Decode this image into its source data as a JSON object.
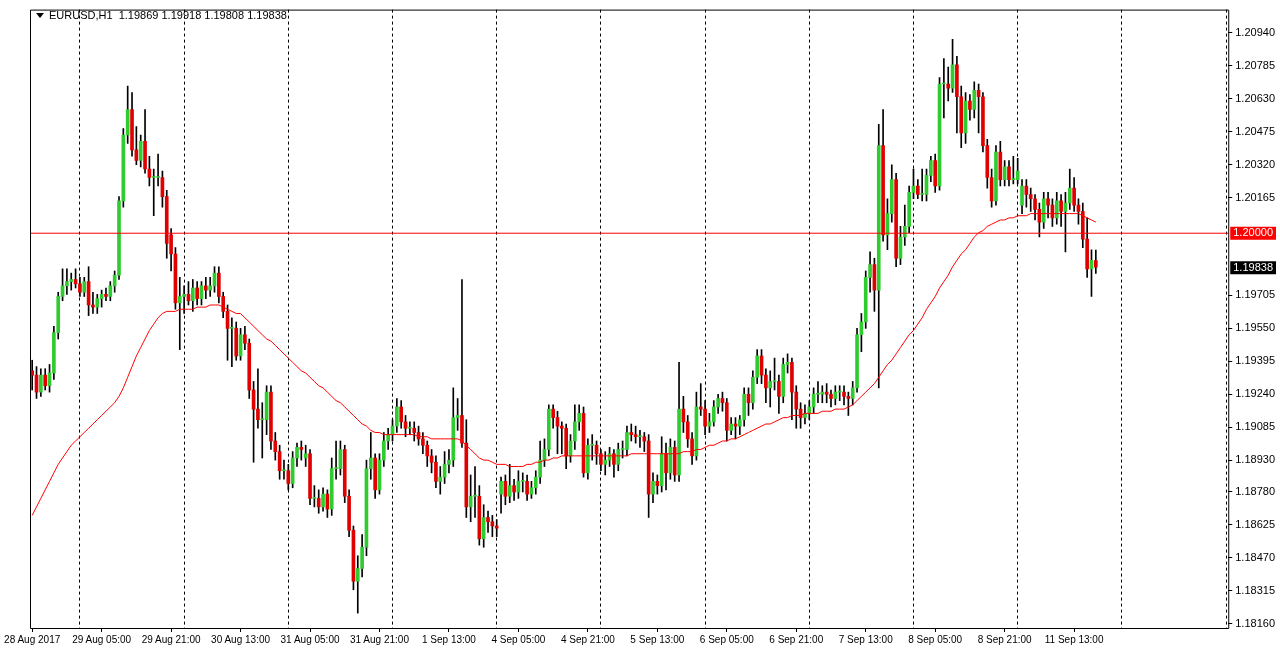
{
  "chart_data": {
    "type": "candlestick",
    "title": "EURUSD,H1  1.19869 1.19918 1.19808 1.19838",
    "categories": [
      "28 Aug 2017",
      null,
      null,
      null,
      null,
      null,
      null,
      null,
      null,
      null,
      null,
      null,
      null,
      null,
      null,
      null,
      "29 Aug 05:00",
      null,
      null,
      null,
      null,
      null,
      null,
      null,
      null,
      null,
      null,
      null,
      null,
      null,
      null,
      null,
      "29 Aug 21:00",
      null,
      null,
      null,
      null,
      null,
      null,
      null,
      null,
      null,
      null,
      null,
      null,
      null,
      null,
      null,
      "30 Aug 13:00",
      null,
      null,
      null,
      null,
      null,
      null,
      null,
      null,
      null,
      null,
      null,
      null,
      null,
      null,
      null,
      "31 Aug 05:00",
      null,
      null,
      null,
      null,
      null,
      null,
      null,
      null,
      null,
      null,
      null,
      null,
      null,
      null,
      null,
      "31 Aug 21:00",
      null,
      null,
      null,
      null,
      null,
      null,
      null,
      null,
      null,
      null,
      null,
      null,
      null,
      null,
      null,
      "1 Sep 13:00",
      null,
      null,
      null,
      null,
      null,
      null,
      null,
      null,
      null,
      null,
      null,
      null,
      null,
      null,
      null,
      "4 Sep 05:00",
      null,
      null,
      null,
      null,
      null,
      null,
      null,
      null,
      null,
      null,
      null,
      null,
      null,
      null,
      null,
      "4 Sep 21:00",
      null,
      null,
      null,
      null,
      null,
      null,
      null,
      null,
      null,
      null,
      null,
      null,
      null,
      null,
      null,
      "5 Sep 13:00",
      null,
      null,
      null,
      null,
      null,
      null,
      null,
      null,
      null,
      null,
      null,
      null,
      null,
      null,
      null,
      "6 Sep 05:00",
      null,
      null,
      null,
      null,
      null,
      null,
      null,
      null,
      null,
      null,
      null,
      null,
      null,
      null,
      null,
      "6 Sep 21:00",
      null,
      null,
      null,
      null,
      null,
      null,
      null,
      null,
      null,
      null,
      null,
      null,
      null,
      null,
      null,
      "7 Sep 13:00",
      null,
      null,
      null,
      null,
      null,
      null,
      null,
      null,
      null,
      null,
      null,
      null,
      null,
      null,
      null,
      "8 Sep 05:00",
      null,
      null,
      null,
      null,
      null,
      null,
      null,
      null,
      null,
      null,
      null,
      null,
      null,
      null,
      null,
      "8 Sep 21:00",
      null,
      null,
      null,
      null,
      null,
      null,
      null,
      null,
      null,
      null,
      null,
      null,
      null,
      null,
      null,
      "11 Sep 13:00",
      null,
      null,
      null,
      null,
      null
    ],
    "ohlc": [
      [
        1.1935,
        1.194,
        1.1926,
        1.1933
      ],
      [
        1.1933,
        1.1937,
        1.1922,
        1.1925
      ],
      [
        1.1925,
        1.1936,
        1.1923,
        1.1933
      ],
      [
        1.1933,
        1.1936,
        1.1926,
        1.1928
      ],
      [
        1.1928,
        1.1938,
        1.1925,
        1.1934
      ],
      [
        1.1934,
        1.1956,
        1.1931,
        1.1953
      ],
      [
        1.1953,
        1.1972,
        1.195,
        1.197
      ],
      [
        1.197,
        1.1983,
        1.1968,
        1.1975
      ],
      [
        1.1975,
        1.1983,
        1.1971,
        1.1977
      ],
      [
        1.1977,
        1.1981,
        1.1973,
        1.1978
      ],
      [
        1.1978,
        1.1983,
        1.1974,
        1.1976
      ],
      [
        1.1976,
        1.1979,
        1.197,
        1.1972
      ],
      [
        1.1972,
        1.1979,
        1.197,
        1.1977
      ],
      [
        1.1977,
        1.1984,
        1.1961,
        1.1966
      ],
      [
        1.1966,
        1.1972,
        1.1962,
        1.1965
      ],
      [
        1.1965,
        1.1971,
        1.1962,
        1.1969
      ],
      [
        1.1969,
        1.1973,
        1.1965,
        1.1971
      ],
      [
        1.1971,
        1.1974,
        1.1968,
        1.197
      ],
      [
        1.197,
        1.1977,
        1.1968,
        1.1975
      ],
      [
        1.1975,
        1.1982,
        1.1972,
        1.198
      ],
      [
        1.198,
        1.2017,
        1.1978,
        1.2015
      ],
      [
        1.2015,
        1.2049,
        1.2012,
        1.2046
      ],
      [
        1.2046,
        1.2069,
        1.2042,
        1.2058
      ],
      [
        1.2058,
        1.2066,
        1.2036,
        1.2039
      ],
      [
        1.2039,
        1.205,
        1.2032,
        1.2034
      ],
      [
        1.2034,
        1.2046,
        1.2031,
        1.2043
      ],
      [
        1.2043,
        1.2058,
        1.2028,
        1.203
      ],
      [
        1.203,
        1.2036,
        1.2022,
        1.2026
      ],
      [
        1.2026,
        1.203,
        1.2008,
        1.2026
      ],
      [
        1.2026,
        1.2037,
        1.2022,
        1.2026
      ],
      [
        1.2026,
        1.2029,
        1.2012,
        1.2017
      ],
      [
        1.2017,
        1.202,
        1.1988,
        1.1995
      ],
      [
        1.1999,
        1.2002,
        1.1982,
        1.199
      ],
      [
        1.199,
        1.1993,
        1.1964,
        1.1967
      ],
      [
        1.1967,
        1.1979,
        1.1945,
        1.197
      ],
      [
        1.197,
        1.1975,
        1.1962,
        1.1971
      ],
      [
        1.1971,
        1.1977,
        1.1966,
        1.1968
      ],
      [
        1.1968,
        1.1978,
        1.1963,
        1.1974
      ],
      [
        1.1974,
        1.1977,
        1.1966,
        1.1969
      ],
      [
        1.1969,
        1.1977,
        1.1966,
        1.1975
      ],
      [
        1.1975,
        1.1979,
        1.1969,
        1.1973
      ],
      [
        1.1973,
        1.1979,
        1.197,
        1.1975
      ],
      [
        1.1975,
        1.1984,
        1.1972,
        1.1981
      ],
      [
        1.1981,
        1.1984,
        1.1967,
        1.197
      ],
      [
        1.197,
        1.1972,
        1.196,
        1.1963
      ],
      [
        1.1963,
        1.1966,
        1.194,
        1.1955
      ],
      [
        1.1955,
        1.196,
        1.1937,
        1.1955
      ],
      [
        1.1955,
        1.1958,
        1.194,
        1.1942
      ],
      [
        1.1942,
        1.1955,
        1.194,
        1.1952
      ],
      [
        1.1952,
        1.1956,
        1.1945,
        1.1948
      ],
      [
        1.1948,
        1.195,
        1.1922,
        1.1926
      ],
      [
        1.1926,
        1.193,
        1.1892,
        1.1917
      ],
      [
        1.1917,
        1.1936,
        1.1908,
        1.1912
      ],
      [
        1.1912,
        1.192,
        1.1894,
        1.1912
      ],
      [
        1.1912,
        1.1928,
        1.1905,
        1.1925
      ],
      [
        1.1925,
        1.1928,
        1.1898,
        1.1902
      ],
      [
        1.1902,
        1.1906,
        1.1893,
        1.1897
      ],
      [
        1.1897,
        1.19,
        1.1884,
        1.1888
      ],
      [
        1.1888,
        1.1893,
        1.1884,
        1.1888
      ],
      [
        1.1888,
        1.1891,
        1.1879,
        1.1882
      ],
      [
        1.1882,
        1.1897,
        1.188,
        1.1894
      ],
      [
        1.1894,
        1.1901,
        1.189,
        1.1899
      ],
      [
        1.1899,
        1.1902,
        1.1893,
        1.1898
      ],
      [
        1.1894,
        1.19,
        1.189,
        1.1896
      ],
      [
        1.1896,
        1.1898,
        1.1872,
        1.1875
      ],
      [
        1.1875,
        1.1881,
        1.1871,
        1.1875
      ],
      [
        1.1875,
        1.1879,
        1.1868,
        1.1871
      ],
      [
        1.1871,
        1.188,
        1.1869,
        1.1877
      ],
      [
        1.1877,
        1.1879,
        1.1866,
        1.187
      ],
      [
        1.187,
        1.1894,
        1.1867,
        1.1889
      ],
      [
        1.1889,
        1.1902,
        1.1884,
        1.1889
      ],
      [
        1.1889,
        1.1902,
        1.1886,
        1.1898
      ],
      [
        1.1898,
        1.19,
        1.1873,
        1.1876
      ],
      [
        1.1876,
        1.1879,
        1.1857,
        1.186
      ],
      [
        1.186,
        1.1862,
        1.1832,
        1.1836
      ],
      [
        1.1836,
        1.1848,
        1.1821,
        1.1842
      ],
      [
        1.1842,
        1.1858,
        1.1838,
        1.1852
      ],
      [
        1.1852,
        1.1893,
        1.1848,
        1.1889
      ],
      [
        1.1889,
        1.1906,
        1.1884,
        1.1894
      ],
      [
        1.1894,
        1.1896,
        1.1875,
        1.1879
      ],
      [
        1.1879,
        1.1896,
        1.1877,
        1.1893
      ],
      [
        1.1893,
        1.1906,
        1.189,
        1.1902
      ],
      [
        1.1902,
        1.1908,
        1.1898,
        1.1905
      ],
      [
        1.1905,
        1.1912,
        1.1902,
        1.1909
      ],
      [
        1.1909,
        1.1922,
        1.1906,
        1.1918
      ],
      [
        1.1918,
        1.1921,
        1.1908,
        1.1911
      ],
      [
        1.1911,
        1.1914,
        1.1904,
        1.1908
      ],
      [
        1.1908,
        1.1911,
        1.1905,
        1.1908
      ],
      [
        1.1908,
        1.1911,
        1.1902,
        1.1906
      ],
      [
        1.1906,
        1.1909,
        1.19,
        1.1903
      ],
      [
        1.1903,
        1.1906,
        1.1896,
        1.19
      ],
      [
        1.19,
        1.1902,
        1.189,
        1.1895
      ],
      [
        1.1895,
        1.1898,
        1.1887,
        1.1892
      ],
      [
        1.1892,
        1.1895,
        1.188,
        1.1883
      ],
      [
        1.1883,
        1.189,
        1.1877,
        1.1885
      ],
      [
        1.1885,
        1.1897,
        1.1882,
        1.1891
      ],
      [
        1.1891,
        1.1898,
        1.1887,
        1.1893
      ],
      [
        1.1893,
        1.1927,
        1.189,
        1.1913
      ],
      [
        1.1913,
        1.1922,
        1.1907,
        1.1914
      ],
      [
        1.1914,
        1.1978,
        1.1899,
        1.1901
      ],
      [
        1.1901,
        1.1912,
        1.1866,
        1.1871
      ],
      [
        1.1871,
        1.1886,
        1.1864,
        1.1876
      ],
      [
        1.1876,
        1.189,
        1.1866,
        1.1876
      ],
      [
        1.1876,
        1.1881,
        1.1853,
        1.1856
      ],
      [
        1.1856,
        1.1872,
        1.1852,
        1.1866
      ],
      [
        1.1866,
        1.1869,
        1.1859,
        1.1864
      ],
      [
        1.1864,
        1.1867,
        1.1857,
        1.1862
      ],
      [
        1.1862,
        1.1865,
        1.1857,
        1.1861
      ],
      [
        1.1877,
        1.1885,
        1.1868,
        1.1883
      ],
      [
        1.1883,
        1.1886,
        1.1872,
        1.1876
      ],
      [
        1.1876,
        1.1891,
        1.1873,
        1.1881
      ],
      [
        1.1881,
        1.1884,
        1.1874,
        1.1878
      ],
      [
        1.1878,
        1.1888,
        1.1875,
        1.1883
      ],
      [
        1.1883,
        1.1887,
        1.1878,
        1.1883
      ],
      [
        1.1883,
        1.1886,
        1.1874,
        1.1877
      ],
      [
        1.1877,
        1.1883,
        1.1875,
        1.188
      ],
      [
        1.188,
        1.1888,
        1.1877,
        1.1885
      ],
      [
        1.1885,
        1.1902,
        1.1882,
        1.1893
      ],
      [
        1.1893,
        1.1903,
        1.189,
        1.1898
      ],
      [
        1.1898,
        1.1919,
        1.1895,
        1.1917
      ],
      [
        1.1917,
        1.1919,
        1.1908,
        1.1913
      ],
      [
        1.1913,
        1.1916,
        1.1896,
        1.1909
      ],
      [
        1.1909,
        1.1911,
        1.1896,
        1.1908
      ],
      [
        1.1908,
        1.191,
        1.1889,
        1.1895
      ],
      [
        1.1895,
        1.1905,
        1.1892,
        1.1902
      ],
      [
        1.1902,
        1.1919,
        1.1898,
        1.1911
      ],
      [
        1.1911,
        1.1919,
        1.1907,
        1.1915
      ],
      [
        1.1915,
        1.1918,
        1.1885,
        1.1887
      ],
      [
        1.1887,
        1.1903,
        1.1884,
        1.19
      ],
      [
        1.19,
        1.1905,
        1.1893,
        1.19
      ],
      [
        1.19,
        1.1902,
        1.1891,
        1.1896
      ],
      [
        1.1896,
        1.1898,
        1.1888,
        1.1891
      ],
      [
        1.1891,
        1.1897,
        1.1886,
        1.1893
      ],
      [
        1.1893,
        1.1899,
        1.189,
        1.1896
      ],
      [
        1.1896,
        1.1898,
        1.1885,
        1.1891
      ],
      [
        1.1891,
        1.1901,
        1.1888,
        1.1898
      ],
      [
        1.1898,
        1.1902,
        1.1894,
        1.1898
      ],
      [
        1.1898,
        1.1909,
        1.1895,
        1.1906
      ],
      [
        1.1906,
        1.191,
        1.1902,
        1.1905
      ],
      [
        1.1905,
        1.1909,
        1.1901,
        1.1904
      ],
      [
        1.1904,
        1.1907,
        1.1899,
        1.1904
      ],
      [
        1.1904,
        1.1906,
        1.1897,
        1.1902
      ],
      [
        1.1902,
        1.1905,
        1.1866,
        1.1877
      ],
      [
        1.1877,
        1.1887,
        1.1873,
        1.1883
      ],
      [
        1.1883,
        1.1886,
        1.1877,
        1.1881
      ],
      [
        1.1881,
        1.1904,
        1.1878,
        1.1896
      ],
      [
        1.1896,
        1.1901,
        1.1879,
        1.1887
      ],
      [
        1.1887,
        1.1903,
        1.1884,
        1.1899
      ],
      [
        1.1899,
        1.1902,
        1.1883,
        1.1886
      ],
      [
        1.1886,
        1.1939,
        1.1883,
        1.1917
      ],
      [
        1.1917,
        1.1923,
        1.1906,
        1.1911
      ],
      [
        1.1911,
        1.1914,
        1.1899,
        1.1903
      ],
      [
        1.1903,
        1.1906,
        1.1891,
        1.1895
      ],
      [
        1.1895,
        1.1925,
        1.1893,
        1.1918
      ],
      [
        1.1918,
        1.1929,
        1.1914,
        1.1917
      ],
      [
        1.1917,
        1.1921,
        1.1905,
        1.1909
      ],
      [
        1.1909,
        1.1915,
        1.1906,
        1.1911
      ],
      [
        1.1911,
        1.1921,
        1.1909,
        1.1918
      ],
      [
        1.1918,
        1.1924,
        1.1915,
        1.1922
      ],
      [
        1.1922,
        1.1925,
        1.1916,
        1.192
      ],
      [
        1.192,
        1.1922,
        1.1902,
        1.1907
      ],
      [
        1.1907,
        1.1913,
        1.1905,
        1.191
      ],
      [
        1.191,
        1.1913,
        1.1903,
        1.1909
      ],
      [
        1.1909,
        1.1914,
        1.1905,
        1.1912
      ],
      [
        1.1912,
        1.1927,
        1.1909,
        1.1924
      ],
      [
        1.1924,
        1.1927,
        1.1914,
        1.192
      ],
      [
        1.192,
        1.1935,
        1.1917,
        1.1932
      ],
      [
        1.1932,
        1.1945,
        1.1929,
        1.1942
      ],
      [
        1.1942,
        1.1945,
        1.1929,
        1.1933
      ],
      [
        1.1933,
        1.1936,
        1.192,
        1.1927
      ],
      [
        1.1927,
        1.1935,
        1.1918,
        1.193
      ],
      [
        1.193,
        1.1941,
        1.1926,
        1.193
      ],
      [
        1.193,
        1.1933,
        1.1915,
        1.1923
      ],
      [
        1.1923,
        1.1941,
        1.192,
        1.1938
      ],
      [
        1.1938,
        1.1943,
        1.1934,
        1.1939
      ],
      [
        1.1939,
        1.1941,
        1.1912,
        1.1925
      ],
      [
        1.1925,
        1.1928,
        1.1908,
        1.1917
      ],
      [
        1.1917,
        1.192,
        1.1908,
        1.1913
      ],
      [
        1.1913,
        1.1919,
        1.191,
        1.1915
      ],
      [
        1.1915,
        1.1921,
        1.1912,
        1.1918
      ],
      [
        1.1918,
        1.1927,
        1.1915,
        1.1924
      ],
      [
        1.1924,
        1.193,
        1.192,
        1.1924
      ],
      [
        1.1924,
        1.1928,
        1.192,
        1.1925
      ],
      [
        1.1925,
        1.1929,
        1.192,
        1.1924
      ],
      [
        1.1924,
        1.1926,
        1.1918,
        1.1922
      ],
      [
        1.1922,
        1.1928,
        1.1919,
        1.1925
      ],
      [
        1.1925,
        1.1928,
        1.1921,
        1.1925
      ],
      [
        1.1925,
        1.1928,
        1.1919,
        1.1923
      ],
      [
        1.1923,
        1.1925,
        1.1914,
        1.1922
      ],
      [
        1.1922,
        1.193,
        1.1919,
        1.1927
      ],
      [
        1.1927,
        1.1955,
        1.1925,
        1.1952
      ],
      [
        1.1952,
        1.1962,
        1.1944,
        1.1958
      ],
      [
        1.1958,
        1.1982,
        1.1955,
        1.1979
      ],
      [
        1.1979,
        1.1991,
        1.1972,
        1.1985
      ],
      [
        1.1985,
        1.1988,
        1.1963,
        1.1973
      ],
      [
        1.1973,
        1.2051,
        1.1927,
        1.2041
      ],
      [
        1.2041,
        1.2058,
        1.1996,
        1.1999
      ],
      [
        1.1999,
        1.2016,
        1.1992,
        1.2009
      ],
      [
        1.2009,
        1.2032,
        1.2005,
        1.2025
      ],
      [
        1.2025,
        1.2028,
        1.1984,
        1.1988
      ],
      [
        1.1988,
        1.2003,
        1.1985,
        1.1998
      ],
      [
        1.1998,
        1.2013,
        1.1994,
        1.2003
      ],
      [
        1.2003,
        1.2022,
        1.2,
        1.2019
      ],
      [
        1.2019,
        1.203,
        1.2016,
        1.2022
      ],
      [
        1.2022,
        1.2025,
        1.2016,
        1.2018
      ],
      [
        1.2018,
        1.203,
        1.2015,
        1.2018
      ],
      [
        1.2018,
        1.203,
        1.2015,
        1.2027
      ],
      [
        1.2027,
        1.2036,
        1.2024,
        1.2034
      ],
      [
        1.2034,
        1.2037,
        1.2019,
        1.2022
      ],
      [
        1.2022,
        1.2073,
        1.202,
        1.207
      ],
      [
        1.207,
        1.2082,
        1.2054,
        1.207
      ],
      [
        1.207,
        1.2078,
        1.2062,
        1.2068
      ],
      [
        1.2068,
        1.2091,
        1.2066,
        1.2079
      ],
      [
        1.2079,
        1.2083,
        1.2047,
        1.2064
      ],
      [
        1.2064,
        1.2069,
        1.204,
        1.2047
      ],
      [
        1.2047,
        1.2066,
        1.2042,
        1.2062
      ],
      [
        1.2062,
        1.2065,
        1.2053,
        1.2058
      ],
      [
        1.2058,
        1.2071,
        1.2054,
        1.2067
      ],
      [
        1.2067,
        1.207,
        1.2047,
        1.2064
      ],
      [
        1.2064,
        1.2066,
        1.2038,
        1.2041
      ],
      [
        1.2041,
        1.2044,
        1.2021,
        1.2026
      ],
      [
        1.2026,
        1.203,
        1.2012,
        1.2015
      ],
      [
        1.2015,
        1.2041,
        1.2013,
        1.2038
      ],
      [
        1.2038,
        1.2043,
        1.2022,
        1.2025
      ],
      [
        1.2025,
        1.2034,
        1.2022,
        1.2031
      ],
      [
        1.2031,
        1.2034,
        1.2022,
        1.2025
      ],
      [
        1.2025,
        1.2036,
        1.2023,
        1.2025
      ],
      [
        1.2025,
        1.2035,
        1.2023,
        1.2029
      ],
      [
        1.2013,
        1.2025,
        1.2009,
        1.2022
      ],
      [
        1.2022,
        1.2025,
        1.2012,
        1.2018
      ],
      [
        1.2018,
        1.2021,
        1.201,
        1.2016
      ],
      [
        1.2016,
        1.2018,
        1.2006,
        1.2011
      ],
      [
        1.2011,
        1.2014,
        1.1998,
        1.2005
      ],
      [
        1.2005,
        1.2019,
        1.2002,
        1.2016
      ],
      [
        1.2016,
        1.2019,
        1.2007,
        1.2013
      ],
      [
        1.2013,
        1.2016,
        1.2003,
        1.2007
      ],
      [
        1.2007,
        1.2019,
        1.2004,
        1.2015
      ],
      [
        1.2015,
        1.2018,
        1.2003,
        1.201
      ],
      [
        1.201,
        1.2019,
        1.1991,
        1.2014
      ],
      [
        1.2014,
        1.203,
        1.2011,
        1.2021
      ],
      [
        1.2021,
        1.2026,
        1.201,
        1.2013
      ],
      [
        1.2013,
        1.2016,
        1.2004,
        1.201
      ],
      [
        1.201,
        1.2014,
        1.1993,
        1.1997
      ],
      [
        1.1997,
        1.2007,
        1.1979,
        1.1983
      ],
      [
        1.1983,
        1.1992,
        1.197,
        1.1987
      ],
      [
        1.19869,
        1.19918,
        1.19808,
        1.19838
      ]
    ],
    "series": [
      {
        "type": "line",
        "color": "#ff0000",
        "values": [
          1.1867,
          1.1871,
          1.1875,
          1.1879,
          1.1883,
          1.1887,
          1.1891,
          1.1894,
          1.1897,
          1.19,
          1.1902,
          1.1904,
          1.1906,
          1.1908,
          1.191,
          1.1912,
          1.1914,
          1.1916,
          1.1918,
          1.192,
          1.1923,
          1.1927,
          1.1932,
          1.1937,
          1.1942,
          1.1946,
          1.195,
          1.1954,
          1.1957,
          1.196,
          1.1962,
          1.1963,
          1.1963,
          1.1963,
          1.1964,
          1.1964,
          1.1964,
          1.1964,
          1.1965,
          1.1965,
          1.1965,
          1.1966,
          1.1966,
          1.1966,
          1.1965,
          1.1964,
          1.1963,
          1.1962,
          1.1962,
          1.196,
          1.1958,
          1.1956,
          1.1954,
          1.1952,
          1.195,
          1.1949,
          1.1947,
          1.1945,
          1.1943,
          1.1941,
          1.1939,
          1.1937,
          1.1935,
          1.1934,
          1.1932,
          1.193,
          1.1928,
          1.1927,
          1.1925,
          1.1923,
          1.1921,
          1.192,
          1.1918,
          1.1916,
          1.1914,
          1.1912,
          1.191,
          1.1909,
          1.1907,
          1.1906,
          1.1906,
          1.1905,
          1.1905,
          1.1905,
          1.1905,
          1.1905,
          1.1905,
          1.1905,
          1.1905,
          1.1904,
          1.1904,
          1.1904,
          1.1903,
          1.1903,
          1.1903,
          1.1903,
          1.1903,
          1.1903,
          1.1903,
          1.1902,
          1.19,
          1.1898,
          1.1896,
          1.1894,
          1.1893,
          1.1893,
          1.1892,
          1.1891,
          1.1891,
          1.1891,
          1.189,
          1.189,
          1.189,
          1.189,
          1.1891,
          1.1891,
          1.1892,
          1.1892,
          1.1893,
          1.1893,
          1.1894,
          1.1894,
          1.1895,
          1.1895,
          1.1895,
          1.1895,
          1.1895,
          1.1895,
          1.1895,
          1.1895,
          1.1895,
          1.1895,
          1.1895,
          1.1895,
          1.1895,
          1.1895,
          1.1895,
          1.1895,
          1.1896,
          1.1896,
          1.1896,
          1.1896,
          1.1896,
          1.1896,
          1.1896,
          1.1896,
          1.1896,
          1.1896,
          1.1896,
          1.1896,
          1.1897,
          1.1897,
          1.1897,
          1.1898,
          1.1898,
          1.1899,
          1.19,
          1.19,
          1.1901,
          1.1902,
          1.1902,
          1.1903,
          1.1903,
          1.1904,
          1.1905,
          1.1906,
          1.1907,
          1.1908,
          1.1909,
          1.191,
          1.191,
          1.1911,
          1.1912,
          1.1913,
          1.1913,
          1.1914,
          1.1914,
          1.1914,
          1.1915,
          1.1915,
          1.1915,
          1.1915,
          1.1916,
          1.1916,
          1.1916,
          1.1917,
          1.1917,
          1.1917,
          1.1918,
          1.1919,
          1.1921,
          1.1923,
          1.1925,
          1.1927,
          1.1929,
          1.1932,
          1.1935,
          1.1938,
          1.194,
          1.1943,
          1.1946,
          1.1949,
          1.1952,
          1.1954,
          1.1957,
          1.196,
          1.1964,
          1.1967,
          1.197,
          1.1974,
          1.1977,
          1.198,
          1.1984,
          1.1987,
          1.199,
          1.1992,
          1.1995,
          1.1998,
          1.2,
          1.2001,
          1.2003,
          1.2004,
          1.2005,
          1.2006,
          1.2006,
          1.2007,
          1.2007,
          1.2008,
          1.2008,
          1.2008,
          1.2009,
          1.2009,
          1.2009,
          1.2009,
          1.2009,
          1.2009,
          1.2009,
          1.2009,
          1.2009,
          1.2009,
          1.2009,
          1.2009,
          1.2008,
          1.2007,
          1.2006,
          1.2005
        ]
      }
    ],
    "ylim": [
      1.1814,
      1.2105
    ],
    "yticks": [
      {
        "value": 1.1816,
        "label": "1.18160"
      },
      {
        "value": 1.18315,
        "label": "1.18315"
      },
      {
        "value": 1.1847,
        "label": "1.18470"
      },
      {
        "value": 1.18625,
        "label": "1.18625"
      },
      {
        "value": 1.1878,
        "label": "1.18780"
      },
      {
        "value": 1.1893,
        "label": "1.18930"
      },
      {
        "value": 1.19085,
        "label": "1.19085"
      },
      {
        "value": 1.1924,
        "label": "1.19240"
      },
      {
        "value": 1.19395,
        "label": "1.19395"
      },
      {
        "value": 1.1955,
        "label": "1.19550"
      },
      {
        "value": 1.19705,
        "label": "1.19705"
      },
      {
        "value": 1.20165,
        "label": "1.20165"
      },
      {
        "value": 1.2032,
        "label": "1.20320"
      },
      {
        "value": 1.20475,
        "label": "1.20475"
      },
      {
        "value": 1.2063,
        "label": "1.20630"
      },
      {
        "value": 1.20785,
        "label": "1.20785"
      },
      {
        "value": 1.2094,
        "label": "1.20940"
      }
    ],
    "ref_lines": [
      {
        "axis": "y",
        "value": 1.2,
        "label": "1.20000",
        "color": "#ff0000"
      }
    ],
    "annotations": [
      "1.19838"
    ],
    "grid": "x"
  }
}
